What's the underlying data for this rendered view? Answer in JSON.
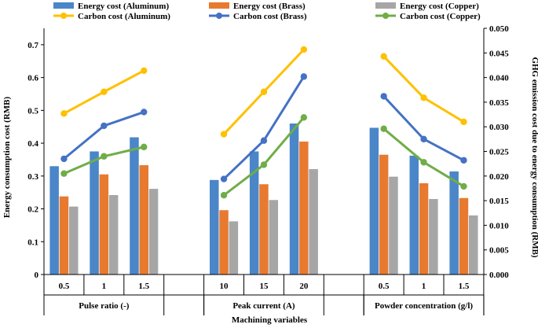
{
  "chart_data": {
    "type": "bar",
    "xlabel": "Machining variables",
    "ylabel": "Energy consumption cost (RMB)",
    "y2label": "GHG emission cost due to energy consumption (RMB)",
    "ylim": [
      0,
      0.75
    ],
    "yticks": [
      "0",
      "0.1",
      "0.2",
      "0.3",
      "0.4",
      "0.5",
      "0.6",
      "0.7"
    ],
    "y2lim": [
      0,
      0.05
    ],
    "y2ticks": [
      "0.000",
      "0.005",
      "0.010",
      "0.015",
      "0.020",
      "0.025",
      "0.030",
      "0.035",
      "0.040",
      "0.045",
      "0.050"
    ],
    "groups": [
      {
        "label": "Pulse ratio (-)",
        "categories": [
          "0.5",
          "1",
          "1.5"
        ]
      },
      {
        "label": "Peak current (A)",
        "categories": [
          "10",
          "15",
          "20"
        ]
      },
      {
        "label": "Powder concentration (g/l)",
        "categories": [
          "0.5",
          "1",
          "1.5"
        ]
      }
    ],
    "bar_series": [
      {
        "name": "Energy cost (Aluminum)",
        "color": "#4a86c8",
        "values": [
          [
            0.33,
            0.375,
            0.418
          ],
          [
            0.288,
            0.375,
            0.46
          ],
          [
            0.447,
            0.362,
            0.314
          ]
        ]
      },
      {
        "name": "Energy cost (Brass)",
        "color": "#e87a30",
        "values": [
          [
            0.238,
            0.305,
            0.333
          ],
          [
            0.196,
            0.275,
            0.405
          ],
          [
            0.365,
            0.278,
            0.233
          ]
        ]
      },
      {
        "name": "Energy cost (Copper)",
        "color": "#a6a6a6",
        "values": [
          [
            0.207,
            0.242,
            0.261
          ],
          [
            0.162,
            0.227,
            0.321
          ],
          [
            0.298,
            0.23,
            0.18
          ]
        ]
      }
    ],
    "line_series": [
      {
        "name": "Carbon cost (Aluminum)",
        "color": "#ffc000",
        "values": [
          [
            0.0327,
            0.0371,
            0.0414
          ],
          [
            0.0285,
            0.0371,
            0.0457
          ],
          [
            0.0443,
            0.0359,
            0.031
          ]
        ]
      },
      {
        "name": "Carbon cost (Brass)",
        "color": "#4472c4",
        "values": [
          [
            0.0235,
            0.0302,
            0.033
          ],
          [
            0.0194,
            0.0272,
            0.0402
          ],
          [
            0.0362,
            0.0275,
            0.0232
          ]
        ]
      },
      {
        "name": "Carbon cost (Copper)",
        "color": "#70ad47",
        "values": [
          [
            0.0205,
            0.024,
            0.0259
          ],
          [
            0.0161,
            0.0223,
            0.0319
          ],
          [
            0.0296,
            0.0228,
            0.0179
          ]
        ]
      }
    ],
    "legend": [
      "Energy cost (Aluminum)",
      "Energy cost (Brass)",
      "Energy cost (Copper)",
      "Carbon cost (Aluminum)",
      "Carbon cost (Brass)",
      "Carbon cost (Copper)"
    ]
  }
}
